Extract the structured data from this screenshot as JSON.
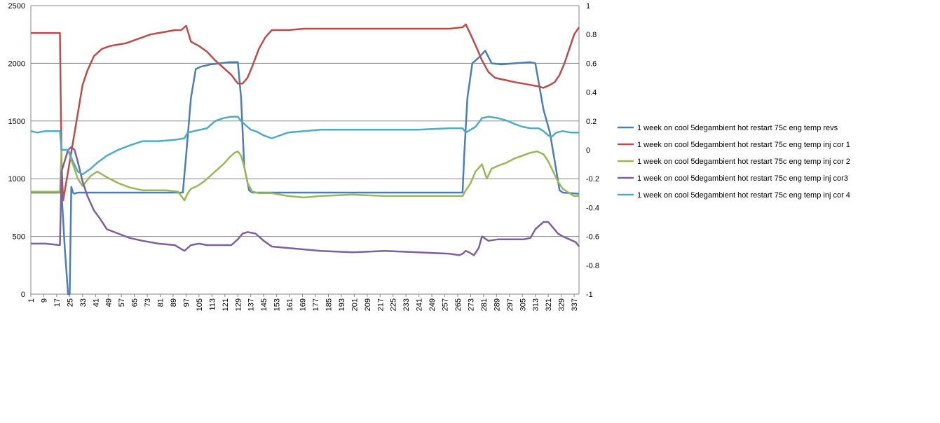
{
  "chart_data": {
    "type": "line",
    "title": "",
    "xlabel": "",
    "ylabel": "",
    "y2label": "",
    "x_tick_labels": [
      "1",
      "9",
      "17",
      "25",
      "33",
      "41",
      "49",
      "57",
      "65",
      "73",
      "81",
      "89",
      "97",
      "105",
      "113",
      "121",
      "129",
      "137",
      "145",
      "153",
      "161",
      "169",
      "177",
      "185",
      "193",
      "201",
      "209",
      "217",
      "225",
      "233",
      "241",
      "249",
      "257",
      "265",
      "273",
      "281",
      "289",
      "297",
      "305",
      "313",
      "321",
      "329",
      "337"
    ],
    "x_range": [
      1,
      340
    ],
    "ylim": [
      0,
      2500
    ],
    "y_ticks": [
      0,
      500,
      1000,
      1500,
      2000,
      2500
    ],
    "y2lim": [
      -1,
      1
    ],
    "y2_ticks": [
      -1,
      -0.8,
      -0.6,
      -0.4,
      -0.2,
      0,
      0.2,
      0.4,
      0.6,
      0.8,
      1
    ],
    "grid": true,
    "legend_position": "right",
    "series": [
      {
        "name": "1 week on  cool   5degambient hot restart  75c eng temp revs",
        "axis": "left",
        "color": "#4a7ebb",
        "x": [
          1,
          19,
          20,
          22,
          24,
          25,
          26,
          27,
          28,
          30,
          95,
          97,
          100,
          103,
          106,
          112,
          118,
          124,
          129,
          131,
          133,
          136,
          138,
          140,
          150,
          200,
          268,
          269,
          271,
          274,
          278,
          282,
          286,
          292,
          300,
          310,
          313,
          318,
          322,
          325,
          328,
          330,
          340
        ],
        "y": [
          880,
          880,
          880,
          400,
          0,
          0,
          930,
          880,
          870,
          880,
          880,
          1200,
          1700,
          1950,
          1970,
          1990,
          2000,
          2010,
          2010,
          1700,
          1100,
          900,
          880,
          880,
          880,
          880,
          880,
          1200,
          1700,
          2000,
          2050,
          2110,
          2000,
          1990,
          2000,
          2010,
          2000,
          1600,
          1400,
          1150,
          900,
          880,
          870
        ]
      },
      {
        "name": "1 week on  cool   5degambient hot restart  75c eng temp inj cor 1",
        "axis": "right",
        "color": "#be4b48",
        "x": [
          1,
          10,
          19,
          20,
          21,
          24,
          27,
          30,
          33,
          36,
          40,
          45,
          50,
          55,
          60,
          65,
          70,
          75,
          80,
          85,
          90,
          94,
          97,
          100,
          105,
          110,
          115,
          120,
          125,
          129,
          132,
          135,
          138,
          142,
          146,
          150,
          160,
          170,
          180,
          190,
          200,
          210,
          220,
          230,
          240,
          250,
          260,
          268,
          270,
          273,
          277,
          280,
          284,
          288,
          292,
          296,
          300,
          305,
          310,
          315,
          318,
          322,
          325,
          328,
          331,
          334,
          337,
          340
        ],
        "y": [
          0.81,
          0.81,
          0.81,
          -0.1,
          -0.35,
          -0.15,
          0.05,
          0.25,
          0.45,
          0.55,
          0.65,
          0.7,
          0.72,
          0.73,
          0.74,
          0.76,
          0.78,
          0.8,
          0.81,
          0.82,
          0.83,
          0.83,
          0.86,
          0.75,
          0.72,
          0.68,
          0.62,
          0.57,
          0.52,
          0.46,
          0.46,
          0.5,
          0.58,
          0.7,
          0.78,
          0.83,
          0.83,
          0.84,
          0.84,
          0.84,
          0.84,
          0.84,
          0.84,
          0.84,
          0.84,
          0.84,
          0.84,
          0.85,
          0.87,
          0.8,
          0.7,
          0.62,
          0.54,
          0.5,
          0.49,
          0.48,
          0.47,
          0.46,
          0.45,
          0.44,
          0.43,
          0.45,
          0.47,
          0.52,
          0.6,
          0.7,
          0.8,
          0.85
        ]
      },
      {
        "name": "1 week on  cool   5degambient hot restart  75c eng temp inj cor 2",
        "axis": "right",
        "color": "#98b954",
        "x": [
          1,
          10,
          19,
          20,
          24,
          27,
          30,
          33,
          38,
          42,
          48,
          55,
          62,
          70,
          78,
          85,
          92,
          96,
          98,
          100,
          104,
          108,
          112,
          116,
          120,
          124,
          127,
          129,
          131,
          133,
          135,
          138,
          142,
          150,
          160,
          170,
          180,
          200,
          220,
          240,
          260,
          268,
          270,
          273,
          276,
          280,
          283,
          286,
          290,
          295,
          300,
          305,
          310,
          314,
          318,
          321,
          324,
          327,
          330,
          334,
          337,
          340
        ],
        "y": [
          -0.29,
          -0.29,
          -0.29,
          0.0,
          0.0,
          -0.1,
          -0.2,
          -0.25,
          -0.18,
          -0.15,
          -0.19,
          -0.23,
          -0.26,
          -0.28,
          -0.28,
          -0.28,
          -0.29,
          -0.35,
          -0.3,
          -0.27,
          -0.25,
          -0.22,
          -0.18,
          -0.14,
          -0.1,
          -0.05,
          -0.02,
          -0.01,
          -0.04,
          -0.12,
          -0.23,
          -0.29,
          -0.3,
          -0.3,
          -0.32,
          -0.33,
          -0.32,
          -0.31,
          -0.32,
          -0.32,
          -0.32,
          -0.32,
          -0.28,
          -0.23,
          -0.15,
          -0.1,
          -0.2,
          -0.13,
          -0.11,
          -0.09,
          -0.06,
          -0.04,
          -0.02,
          -0.01,
          -0.03,
          -0.08,
          -0.15,
          -0.22,
          -0.27,
          -0.3,
          -0.32,
          -0.32
        ]
      },
      {
        "name": "1 week on  cool   5degambient hot restart  75c eng temp inj cor3",
        "axis": "right",
        "color": "#7d60a0",
        "x": [
          1,
          10,
          19,
          20,
          24,
          26,
          28,
          30,
          33,
          36,
          40,
          44,
          48,
          55,
          62,
          70,
          80,
          90,
          96,
          98,
          100,
          105,
          110,
          115,
          120,
          125,
          129,
          132,
          135,
          140,
          145,
          150,
          160,
          170,
          180,
          200,
          220,
          240,
          260,
          266,
          268,
          270,
          272,
          275,
          278,
          280,
          284,
          290,
          300,
          306,
          310,
          313,
          316,
          318,
          321,
          324,
          327,
          330,
          334,
          338,
          340
        ],
        "y": [
          -0.65,
          -0.65,
          -0.66,
          -0.15,
          0.0,
          0.02,
          0.0,
          -0.08,
          -0.22,
          -0.32,
          -0.42,
          -0.48,
          -0.55,
          -0.58,
          -0.61,
          -0.63,
          -0.65,
          -0.66,
          -0.7,
          -0.68,
          -0.66,
          -0.65,
          -0.66,
          -0.66,
          -0.66,
          -0.66,
          -0.62,
          -0.58,
          -0.57,
          -0.58,
          -0.63,
          -0.67,
          -0.68,
          -0.69,
          -0.7,
          -0.71,
          -0.7,
          -0.71,
          -0.72,
          -0.73,
          -0.72,
          -0.7,
          -0.71,
          -0.73,
          -0.68,
          -0.6,
          -0.63,
          -0.62,
          -0.62,
          -0.62,
          -0.61,
          -0.55,
          -0.52,
          -0.5,
          -0.5,
          -0.54,
          -0.58,
          -0.6,
          -0.62,
          -0.64,
          -0.67
        ]
      },
      {
        "name": "1 week on  cool   5degambient hot restart  75c eng temp inj cor 4",
        "axis": "right",
        "color": "#4aacc5",
        "x": [
          1,
          5,
          10,
          19,
          20,
          24,
          27,
          30,
          33,
          38,
          42,
          48,
          55,
          62,
          70,
          80,
          90,
          96,
          98,
          102,
          106,
          110,
          115,
          120,
          125,
          129,
          131,
          134,
          137,
          140,
          145,
          150,
          160,
          170,
          180,
          200,
          220,
          240,
          260,
          268,
          270,
          273,
          276,
          280,
          284,
          290,
          296,
          300,
          305,
          310,
          315,
          318,
          321,
          323,
          326,
          330,
          335,
          340
        ],
        "y": [
          0.13,
          0.12,
          0.13,
          0.13,
          0.0,
          0.0,
          -0.08,
          -0.15,
          -0.17,
          -0.13,
          -0.09,
          -0.04,
          0.0,
          0.03,
          0.06,
          0.06,
          0.07,
          0.08,
          0.12,
          0.13,
          0.14,
          0.15,
          0.2,
          0.22,
          0.23,
          0.23,
          0.2,
          0.17,
          0.14,
          0.13,
          0.1,
          0.08,
          0.12,
          0.13,
          0.14,
          0.14,
          0.14,
          0.14,
          0.15,
          0.15,
          0.12,
          0.14,
          0.16,
          0.22,
          0.23,
          0.22,
          0.2,
          0.18,
          0.16,
          0.15,
          0.15,
          0.13,
          0.1,
          0.09,
          0.12,
          0.13,
          0.12,
          0.12
        ]
      }
    ]
  }
}
